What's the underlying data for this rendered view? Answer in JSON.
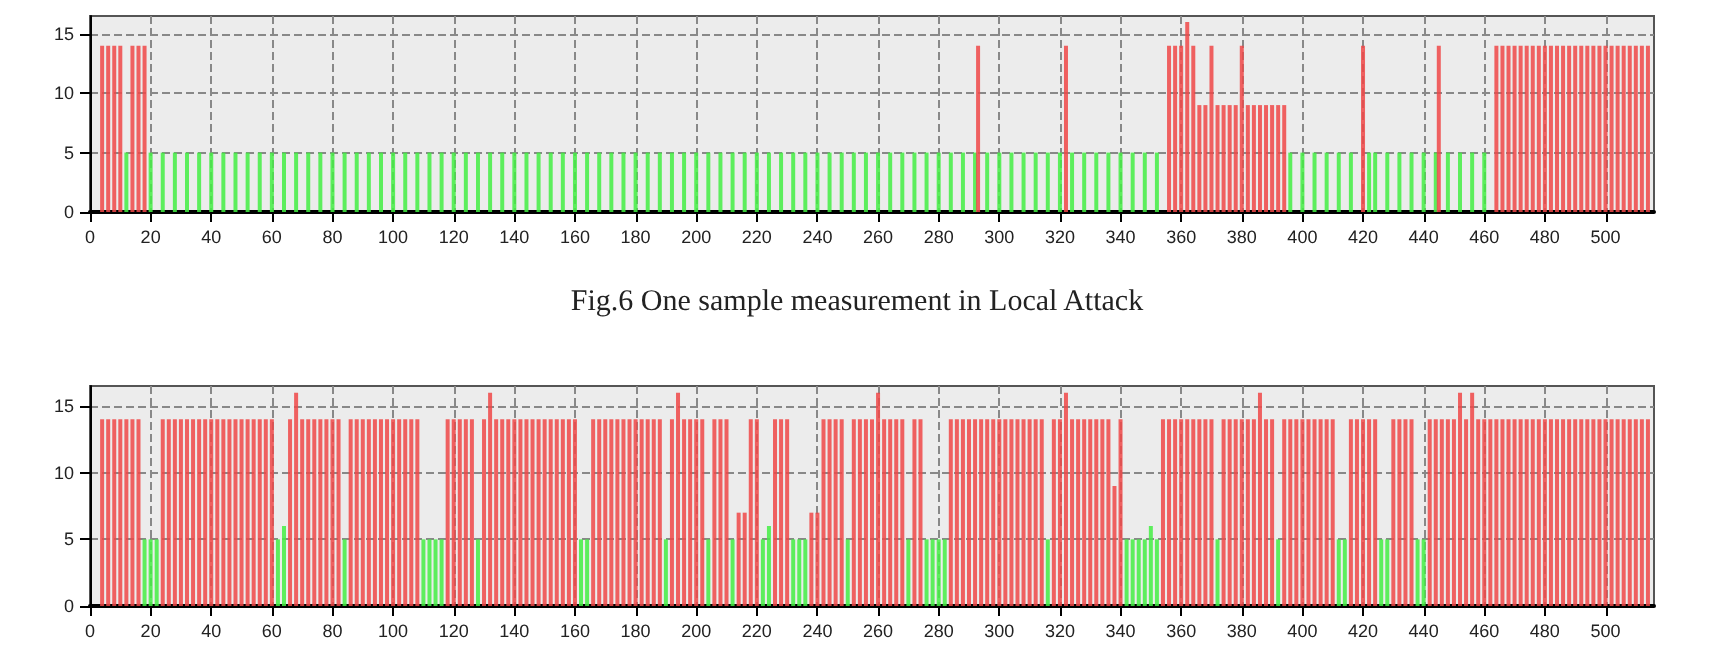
{
  "chart_data": [
    {
      "type": "bar",
      "annotations": [
        "Fig.6 One sample measurement in Local Attack"
      ],
      "xlim": [
        0,
        516
      ],
      "xticks": [
        0,
        20,
        40,
        60,
        80,
        100,
        120,
        140,
        160,
        180,
        200,
        220,
        240,
        260,
        280,
        300,
        320,
        340,
        360,
        380,
        400,
        420,
        440,
        460,
        480,
        500
      ],
      "ylim": [
        0,
        16.5
      ],
      "yticks": [
        0,
        5,
        10,
        15
      ],
      "grid": true,
      "series": [
        {
          "color": "#44ee44",
          "x": [
            12,
            20,
            24,
            28,
            32,
            36,
            40,
            44,
            48,
            52,
            56,
            60,
            64,
            68,
            72,
            76,
            80,
            84,
            88,
            92,
            96,
            100,
            104,
            108,
            112,
            116,
            120,
            124,
            128,
            132,
            136,
            140,
            144,
            148,
            152,
            156,
            160,
            164,
            168,
            172,
            176,
            180,
            184,
            188,
            192,
            196,
            200,
            204,
            208,
            212,
            216,
            220,
            224,
            228,
            232,
            236,
            240,
            244,
            248,
            252,
            256,
            260,
            264,
            268,
            272,
            276,
            280,
            284,
            288,
            292,
            296,
            300,
            304,
            308,
            312,
            316,
            320,
            324,
            328,
            332,
            336,
            340,
            344,
            348,
            352,
            396,
            400,
            404,
            408,
            412,
            416,
            422,
            424,
            428,
            432,
            436,
            440,
            444,
            448,
            452,
            456,
            460
          ],
          "values": [
            5,
            5,
            5,
            5,
            5,
            5,
            5,
            5,
            5,
            5,
            5,
            5,
            5,
            5,
            5,
            5,
            5,
            5,
            5,
            5,
            5,
            5,
            5,
            5,
            5,
            5,
            5,
            5,
            5,
            5,
            5,
            5,
            5,
            5,
            5,
            5,
            5,
            5,
            5,
            5,
            5,
            5,
            5,
            5,
            5,
            5,
            5,
            5,
            5,
            5,
            5,
            5,
            5,
            5,
            5,
            5,
            5,
            5,
            5,
            5,
            5,
            5,
            5,
            5,
            5,
            5,
            5,
            5,
            5,
            5,
            5,
            5,
            5,
            5,
            5,
            5,
            5,
            5,
            5,
            5,
            5,
            5,
            5,
            5,
            5,
            5,
            5,
            5,
            5,
            5,
            5,
            5,
            5,
            5,
            5,
            5,
            5,
            5,
            5,
            5,
            5,
            5
          ]
        },
        {
          "color": "#f04848",
          "x": [
            4,
            6,
            8,
            10,
            14,
            16,
            18,
            293,
            322,
            356,
            358,
            360,
            362,
            364,
            366,
            368,
            370,
            372,
            374,
            376,
            378,
            380,
            382,
            384,
            386,
            388,
            390,
            392,
            394,
            420,
            445,
            464,
            466,
            468,
            470,
            472,
            474,
            476,
            478,
            480,
            482,
            484,
            486,
            488,
            490,
            492,
            494,
            496,
            498,
            500,
            502,
            504,
            506,
            508,
            510,
            512,
            514
          ],
          "values": [
            14,
            14,
            14,
            14,
            14,
            14,
            14,
            14,
            14,
            14,
            14,
            14,
            16,
            14,
            9,
            9,
            14,
            9,
            9,
            9,
            9,
            14,
            9,
            9,
            9,
            9,
            9,
            9,
            9,
            14,
            14,
            14,
            14,
            14,
            14,
            14,
            14,
            14,
            14,
            14,
            14,
            14,
            14,
            14,
            14,
            14,
            14,
            14,
            14,
            14,
            14,
            14,
            14,
            14,
            14,
            14,
            14
          ]
        }
      ]
    },
    {
      "type": "bar",
      "xlim": [
        0,
        516
      ],
      "xticks": [
        0,
        20,
        40,
        60,
        80,
        100,
        120,
        140,
        160,
        180,
        200,
        220,
        240,
        260,
        280,
        300,
        320,
        340,
        360,
        380,
        400,
        420,
        440,
        460,
        480,
        500
      ],
      "ylim": [
        0,
        16.5
      ],
      "yticks": [
        0,
        5,
        10,
        15
      ],
      "grid": true,
      "series": [
        {
          "color": "#44ee44",
          "x": [
            18,
            20,
            22,
            62,
            64,
            84,
            110,
            112,
            114,
            116,
            128,
            162,
            164,
            190,
            204,
            212,
            222,
            224,
            232,
            234,
            236,
            250,
            270,
            276,
            278,
            280,
            282,
            316,
            342,
            344,
            346,
            348,
            350,
            352,
            372,
            392,
            412,
            414,
            426,
            428,
            438,
            440
          ],
          "values": [
            5,
            5,
            5,
            5,
            6,
            5,
            5,
            5,
            5,
            5,
            5,
            5,
            5,
            5,
            5,
            5,
            5,
            6,
            5,
            5,
            5,
            5,
            5,
            5,
            5,
            5,
            5,
            5,
            5,
            5,
            5,
            5,
            6,
            5,
            5,
            5,
            5,
            5,
            5,
            5,
            5,
            5
          ]
        },
        {
          "color": "#f04848",
          "x": [
            4,
            6,
            8,
            10,
            12,
            14,
            16,
            24,
            26,
            28,
            30,
            32,
            34,
            36,
            38,
            40,
            42,
            44,
            46,
            48,
            50,
            52,
            54,
            56,
            58,
            60,
            66,
            68,
            70,
            72,
            74,
            76,
            78,
            80,
            82,
            86,
            88,
            90,
            92,
            94,
            96,
            98,
            100,
            102,
            104,
            106,
            108,
            118,
            120,
            122,
            124,
            126,
            130,
            132,
            134,
            136,
            138,
            140,
            142,
            144,
            146,
            148,
            150,
            152,
            154,
            156,
            158,
            160,
            166,
            168,
            170,
            172,
            174,
            176,
            178,
            180,
            182,
            184,
            186,
            188,
            192,
            194,
            196,
            198,
            200,
            202,
            206,
            208,
            210,
            214,
            216,
            218,
            220,
            226,
            228,
            230,
            238,
            240,
            242,
            244,
            246,
            248,
            252,
            254,
            256,
            258,
            260,
            262,
            264,
            266,
            268,
            272,
            274,
            284,
            286,
            288,
            290,
            292,
            294,
            296,
            298,
            300,
            302,
            304,
            306,
            308,
            310,
            312,
            314,
            318,
            320,
            322,
            324,
            326,
            328,
            330,
            332,
            334,
            336,
            338,
            340,
            354,
            356,
            358,
            360,
            362,
            364,
            366,
            368,
            370,
            374,
            376,
            378,
            380,
            382,
            384,
            386,
            388,
            390,
            394,
            396,
            398,
            400,
            402,
            404,
            406,
            408,
            410,
            416,
            418,
            420,
            422,
            424,
            430,
            432,
            434,
            436,
            442,
            444,
            446,
            448,
            450,
            452,
            454,
            456,
            458,
            460,
            462,
            464,
            466,
            468,
            470,
            472,
            474,
            476,
            478,
            480,
            482,
            484,
            486,
            488,
            490,
            492,
            494,
            496,
            498,
            500,
            502,
            504,
            506,
            508,
            510,
            512,
            514
          ],
          "values": [
            14,
            14,
            14,
            14,
            14,
            14,
            14,
            14,
            14,
            14,
            14,
            14,
            14,
            14,
            14,
            14,
            14,
            14,
            14,
            14,
            14,
            14,
            14,
            14,
            14,
            14,
            14,
            16,
            14,
            14,
            14,
            14,
            14,
            14,
            14,
            14,
            14,
            14,
            14,
            14,
            14,
            14,
            14,
            14,
            14,
            14,
            14,
            14,
            14,
            14,
            14,
            14,
            14,
            16,
            14,
            14,
            14,
            14,
            14,
            14,
            14,
            14,
            14,
            14,
            14,
            14,
            14,
            14,
            14,
            14,
            14,
            14,
            14,
            14,
            14,
            14,
            14,
            14,
            14,
            14,
            14,
            16,
            14,
            14,
            14,
            14,
            14,
            14,
            14,
            7,
            7,
            14,
            14,
            14,
            14,
            14,
            7,
            7,
            14,
            14,
            14,
            14,
            14,
            14,
            14,
            14,
            16,
            14,
            14,
            14,
            14,
            14,
            14,
            14,
            14,
            14,
            14,
            14,
            14,
            14,
            14,
            14,
            14,
            14,
            14,
            14,
            14,
            14,
            14,
            14,
            14,
            16,
            14,
            14,
            14,
            14,
            14,
            14,
            14,
            9,
            14,
            14,
            14,
            14,
            14,
            14,
            14,
            14,
            14,
            14,
            14,
            14,
            14,
            14,
            14,
            14,
            16,
            14,
            14,
            14,
            14,
            14,
            14,
            14,
            14,
            14,
            14,
            14,
            14,
            14,
            14,
            14,
            14,
            14,
            14,
            14,
            14,
            14,
            14,
            14,
            14,
            14,
            16,
            14,
            16,
            14,
            14,
            14,
            14,
            14,
            14,
            14,
            14,
            14,
            14,
            14,
            14,
            14,
            14,
            14,
            14,
            14,
            14,
            14,
            14,
            14,
            14,
            14,
            14,
            14,
            14,
            14,
            14,
            14
          ]
        }
      ]
    }
  ]
}
